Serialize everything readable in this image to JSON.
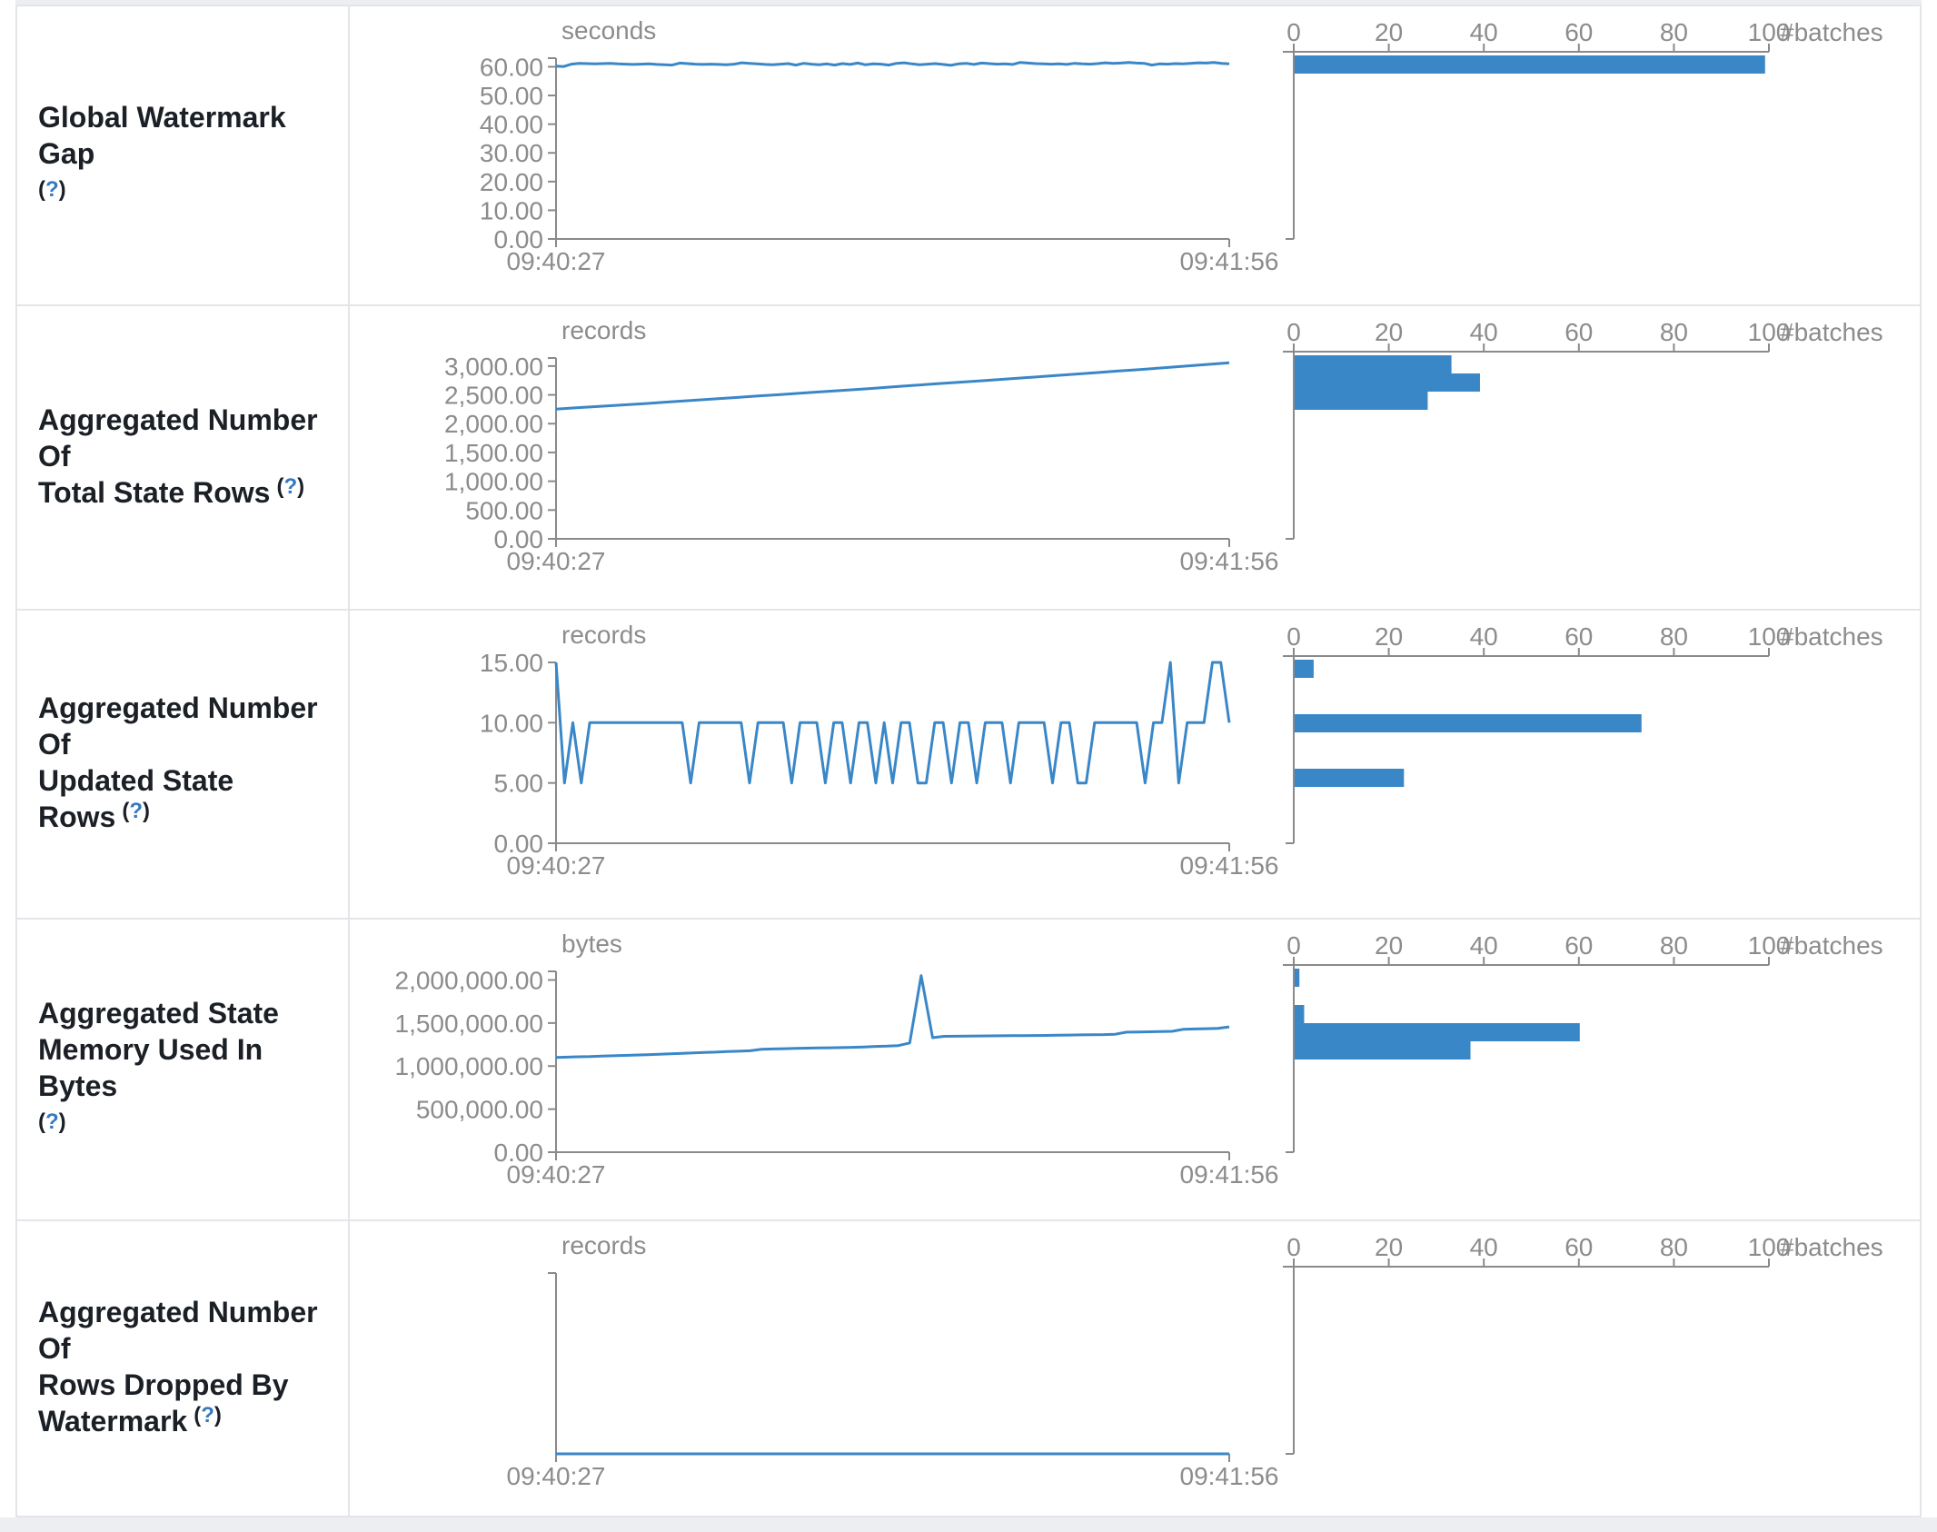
{
  "colors": {
    "accent": "#3a87c8",
    "axis": "#8a8a8a",
    "tick_text": "#8c8c8c",
    "label_text": "#1b1f26",
    "help_link": "#3579c0",
    "border": "#e3e5e8",
    "strip": "#eceef1"
  },
  "help": {
    "open": "(",
    "symbol": "?",
    "close": ")"
  },
  "time_axis": {
    "start": "09:40:27",
    "end": "09:41:56"
  },
  "batches_axis": {
    "label": "#batches",
    "ticks": [
      "0",
      "20",
      "40",
      "60",
      "80",
      "100"
    ],
    "max": 100
  },
  "rows": [
    {
      "label_lines": [
        "Global Watermark Gap"
      ],
      "help_inline": false
    },
    {
      "label_lines": [
        "Aggregated Number Of",
        "Total State Rows"
      ],
      "help_inline": true
    },
    {
      "label_lines": [
        "Aggregated Number Of",
        "Updated State Rows"
      ],
      "help_inline": true
    },
    {
      "label_lines": [
        "Aggregated State",
        "Memory Used In Bytes"
      ],
      "help_inline": false
    },
    {
      "label_lines": [
        "Aggregated Number Of",
        "Rows Dropped By",
        "Watermark"
      ],
      "help_inline": true
    }
  ],
  "chart_data": [
    {
      "name": "Global Watermark Gap",
      "type": "line",
      "unit": "seconds",
      "x_start": "09:40:27",
      "x_end": "09:41:56",
      "ylim": [
        0,
        63
      ],
      "yticks": [
        60,
        50,
        40,
        30,
        20,
        10,
        0
      ],
      "ytick_labels": [
        "60.00",
        "50.00",
        "40.00",
        "30.00",
        "20.00",
        "10.00",
        "0.00"
      ],
      "series": [
        60.2,
        60.1,
        60.9,
        61.2,
        61.1,
        61.0,
        61.1,
        61.2,
        61.0,
        60.9,
        60.8,
        60.9,
        61.0,
        60.8,
        60.7,
        60.6,
        61.3,
        61.1,
        60.9,
        60.8,
        60.9,
        60.8,
        60.7,
        60.9,
        61.4,
        61.2,
        61.0,
        60.8,
        60.7,
        60.9,
        61.1,
        60.6,
        61.2,
        60.9,
        60.7,
        61.0,
        60.6,
        61.1,
        60.8,
        61.3,
        60.7,
        61.0,
        60.9,
        60.6,
        61.2,
        61.4,
        61.0,
        60.7,
        60.9,
        61.1,
        60.8,
        60.5,
        61.0,
        61.2,
        60.8,
        61.3,
        61.1,
        60.9,
        61.0,
        60.8,
        61.5,
        61.3,
        61.1,
        61.0,
        60.9,
        61.0,
        60.8,
        61.2,
        61.0,
        60.9,
        61.1,
        61.4,
        61.2,
        61.3,
        61.5,
        61.3,
        61.2,
        60.6,
        61.0,
        60.9,
        61.1,
        61.0,
        61.2,
        61.4,
        61.3,
        61.5,
        61.2,
        61.0
      ],
      "histogram": {
        "type": "bar",
        "xlabel": "#batches",
        "xlim": [
          0,
          100
        ],
        "xticks": [
          0,
          20,
          40,
          60,
          80,
          100
        ],
        "bins": [
          {
            "slot": 0,
            "count": 99
          }
        ]
      }
    },
    {
      "name": "Aggregated Number Of Total State Rows",
      "type": "line",
      "unit": "records",
      "x_start": "09:40:27",
      "x_end": "09:41:56",
      "ylim": [
        0,
        3140
      ],
      "yticks": [
        3000,
        2500,
        2000,
        1500,
        1000,
        500,
        0
      ],
      "ytick_labels": [
        "3,000.00",
        "2,500.00",
        "2,000.00",
        "1,500.00",
        "1,000.00",
        "500.00",
        "0.00"
      ],
      "series": [
        2254,
        2278,
        2302,
        2326,
        2350,
        2376,
        2402,
        2428,
        2454,
        2480,
        2506,
        2532,
        2558,
        2584,
        2610,
        2638,
        2666,
        2694,
        2720,
        2746,
        2772,
        2800,
        2828,
        2856,
        2884,
        2912,
        2940,
        2968,
        2998,
        3028,
        3058
      ],
      "histogram": {
        "type": "bar",
        "xlabel": "#batches",
        "xlim": [
          0,
          100
        ],
        "xticks": [
          0,
          20,
          40,
          60,
          80,
          100
        ],
        "bins": [
          {
            "slot": 0,
            "count": 33
          },
          {
            "slot": 1,
            "count": 39
          },
          {
            "slot": 2,
            "count": 28
          }
        ]
      }
    },
    {
      "name": "Aggregated Number Of Updated State Rows",
      "type": "line",
      "unit": "records",
      "x_start": "09:40:27",
      "x_end": "09:41:56",
      "ylim": [
        0,
        15
      ],
      "yticks": [
        15,
        10,
        5,
        0
      ],
      "ytick_labels": [
        "15.00",
        "10.00",
        "5.00",
        "0.00"
      ],
      "series": [
        15,
        5,
        10,
        5,
        10,
        10,
        10,
        10,
        10,
        10,
        10,
        10,
        10,
        10,
        10,
        10,
        5,
        10,
        10,
        10,
        10,
        10,
        10,
        5,
        10,
        10,
        10,
        10,
        5,
        10,
        10,
        10,
        5,
        10,
        10,
        5,
        10,
        10,
        5,
        10,
        5,
        10,
        10,
        5,
        5,
        10,
        10,
        5,
        10,
        10,
        5,
        10,
        10,
        10,
        5,
        10,
        10,
        10,
        10,
        5,
        10,
        10,
        5,
        5,
        10,
        10,
        10,
        10,
        10,
        10,
        5,
        10,
        10,
        15,
        5,
        10,
        10,
        10,
        15,
        15,
        10
      ],
      "histogram": {
        "type": "bar",
        "xlabel": "#batches",
        "xlim": [
          0,
          100
        ],
        "xticks": [
          0,
          20,
          40,
          60,
          80,
          100
        ],
        "bins": [
          {
            "slot": 0,
            "count": 4
          },
          {
            "slot": 3,
            "count": 73
          },
          {
            "slot": 6,
            "count": 23
          }
        ]
      }
    },
    {
      "name": "Aggregated State Memory Used In Bytes",
      "type": "line",
      "unit": "bytes",
      "x_start": "09:40:27",
      "x_end": "09:41:56",
      "ylim": [
        0,
        2100000
      ],
      "yticks": [
        2000000,
        1500000,
        1000000,
        500000,
        0
      ],
      "ytick_labels": [
        "2,000,000.00",
        "1,500,000.00",
        "1,000,000.00",
        "500,000.00",
        "0.00"
      ],
      "series": [
        1100000,
        1104000,
        1108000,
        1110000,
        1115000,
        1120000,
        1124000,
        1128000,
        1132000,
        1138000,
        1142000,
        1148000,
        1152000,
        1158000,
        1162000,
        1168000,
        1172000,
        1178000,
        1195000,
        1199000,
        1202000,
        1205000,
        1208000,
        1210000,
        1212000,
        1215000,
        1218000,
        1222000,
        1228000,
        1232000,
        1238000,
        1268000,
        2050000,
        1330000,
        1345000,
        1347000,
        1349000,
        1350000,
        1351000,
        1352000,
        1353000,
        1354000,
        1355000,
        1356000,
        1358000,
        1360000,
        1362000,
        1364000,
        1366000,
        1370000,
        1394000,
        1396000,
        1398000,
        1400000,
        1403000,
        1428000,
        1431000,
        1434000,
        1438000,
        1455000
      ],
      "histogram": {
        "type": "bar",
        "xlabel": "#batches",
        "xlim": [
          0,
          100
        ],
        "xticks": [
          0,
          20,
          40,
          60,
          80,
          100
        ],
        "bins": [
          {
            "slot": 0,
            "count": 1
          },
          {
            "slot": 2,
            "count": 2
          },
          {
            "slot": 3,
            "count": 60
          },
          {
            "slot": 4,
            "count": 37
          }
        ]
      }
    },
    {
      "name": "Aggregated Number Of Rows Dropped By Watermark",
      "type": "line",
      "unit": "records",
      "x_start": "09:40:27",
      "x_end": "09:41:56",
      "ylim": [
        0,
        1
      ],
      "yticks": [],
      "ytick_labels": [],
      "series": [
        0,
        0
      ],
      "histogram": {
        "type": "bar",
        "xlabel": "#batches",
        "xlim": [
          0,
          100
        ],
        "xticks": [
          0,
          20,
          40,
          60,
          80,
          100
        ],
        "bins": []
      }
    }
  ]
}
